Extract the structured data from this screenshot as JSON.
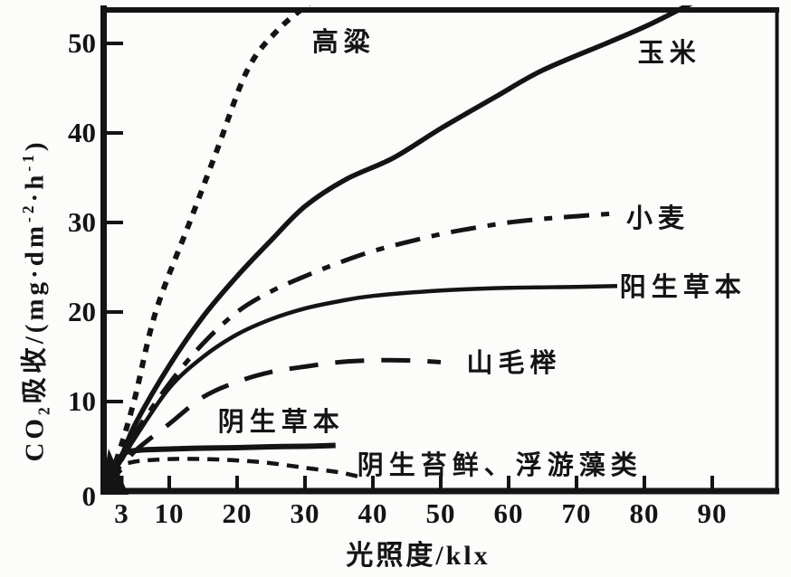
{
  "figure_title": "",
  "chart_data": {
    "type": "line",
    "title": "",
    "xlabel": "光照度/klx",
    "ylabel": "CO2吸收/(mg·dm-2·h-1)",
    "ylabel_parts": [
      {
        "t": "text",
        "v": "CO"
      },
      {
        "t": "sub",
        "v": "2"
      },
      {
        "t": "text",
        "v": "吸收/(mg·dm"
      },
      {
        "t": "sup",
        "v": "-2"
      },
      {
        "t": "text",
        "v": "·h"
      },
      {
        "t": "sup",
        "v": "-1"
      },
      {
        "t": "text",
        "v": ")"
      }
    ],
    "xlim": [
      0,
      100
    ],
    "ylim": [
      0,
      54
    ],
    "x_ticks": [
      3,
      10,
      20,
      30,
      40,
      50,
      60,
      70,
      80,
      90
    ],
    "y_ticks": [
      0,
      10,
      20,
      30,
      40,
      50
    ],
    "grid": false,
    "legend_position": "labels-inline-next-to-curves",
    "ink": "#141414",
    "background": "#fcfcfa",
    "series": [
      {
        "id": "sorghum",
        "name": "高粱",
        "style": "dotted",
        "points": [
          [
            0,
            0
          ],
          [
            2,
            3
          ],
          [
            4.8,
            10
          ],
          [
            8,
            20
          ],
          [
            13,
            30
          ],
          [
            17,
            38
          ],
          [
            21.5,
            47
          ],
          [
            26,
            51.5
          ],
          [
            31.5,
            55
          ]
        ],
        "label_at": [
          35.7,
          50.4
        ]
      },
      {
        "id": "corn",
        "name": "玉米",
        "style": "solid-thick",
        "points": [
          [
            0,
            0
          ],
          [
            3,
            4
          ],
          [
            5,
            7.5
          ],
          [
            10,
            14
          ],
          [
            15,
            19.5
          ],
          [
            20,
            24
          ],
          [
            25,
            28
          ],
          [
            30,
            31.8
          ],
          [
            36,
            34.8
          ],
          [
            43,
            37.2
          ],
          [
            50,
            40.5
          ],
          [
            58,
            44
          ],
          [
            65,
            47
          ],
          [
            75,
            50.2
          ],
          [
            81,
            52.2
          ],
          [
            87,
            54.5
          ]
        ],
        "label_at": [
          83.7,
          49.2
        ]
      },
      {
        "id": "wheat",
        "name": "小麦",
        "style": "dash-dot",
        "points": [
          [
            0,
            0
          ],
          [
            3,
            3.5
          ],
          [
            5,
            6.5
          ],
          [
            10,
            12
          ],
          [
            15,
            16.5
          ],
          [
            20,
            20
          ],
          [
            25,
            22.3
          ],
          [
            30,
            24
          ],
          [
            35,
            25.5
          ],
          [
            40,
            26.8
          ],
          [
            45,
            27.8
          ],
          [
            50,
            28.7
          ],
          [
            55,
            29.4
          ],
          [
            60,
            30
          ],
          [
            65,
            30.4
          ],
          [
            70,
            30.7
          ],
          [
            75.5,
            31
          ]
        ],
        "label_at": [
          82,
          30.7
        ]
      },
      {
        "id": "sun-herbs",
        "name": "阳生草本",
        "style": "solid",
        "points": [
          [
            0,
            0
          ],
          [
            3,
            3.5
          ],
          [
            5,
            6
          ],
          [
            10,
            11.5
          ],
          [
            15,
            15
          ],
          [
            20,
            17.5
          ],
          [
            25,
            19.2
          ],
          [
            30,
            20.4
          ],
          [
            35,
            21.2
          ],
          [
            40,
            21.8
          ],
          [
            50,
            22.4
          ],
          [
            60,
            22.7
          ],
          [
            70,
            22.8
          ],
          [
            76,
            22.9
          ]
        ],
        "label_at": [
          85.7,
          23.0
        ]
      },
      {
        "id": "beech",
        "name": "山毛榉",
        "style": "long-dash",
        "points": [
          [
            0,
            0
          ],
          [
            3,
            2.5
          ],
          [
            5,
            4.5
          ],
          [
            10,
            7.5
          ],
          [
            15,
            10.5
          ],
          [
            20,
            12.2
          ],
          [
            25,
            13.3
          ],
          [
            30,
            13.9
          ],
          [
            35,
            14.4
          ],
          [
            40,
            14.6
          ],
          [
            45,
            14.6
          ],
          [
            50,
            14.4
          ]
        ],
        "label_at": [
          60.8,
          14.5
        ]
      },
      {
        "id": "shade-herbs",
        "name": "阴生草本",
        "style": "solid-flat",
        "points": [
          [
            0,
            0
          ],
          [
            1.5,
            2.5
          ],
          [
            3,
            4
          ],
          [
            4,
            4.4
          ],
          [
            6,
            4.6
          ],
          [
            10,
            4.7
          ],
          [
            15,
            4.8
          ],
          [
            20,
            4.85
          ],
          [
            25,
            4.95
          ],
          [
            30,
            5.0
          ],
          [
            34.5,
            5.1
          ]
        ],
        "label_at": [
          26.5,
          8.0
        ]
      },
      {
        "id": "shade-moss-algae",
        "name": "阴生苔鲜、浮游藻类",
        "style": "short-dash",
        "points": [
          [
            0,
            0
          ],
          [
            1,
            1.4
          ],
          [
            3,
            2.8
          ],
          [
            5,
            3.3
          ],
          [
            8,
            3.5
          ],
          [
            12,
            3.6
          ],
          [
            18,
            3.5
          ],
          [
            24,
            3.2
          ],
          [
            30,
            2.6
          ],
          [
            35,
            2.1
          ],
          [
            38,
            1.6
          ]
        ],
        "label_at": [
          58.7,
          3.1
        ]
      }
    ]
  }
}
